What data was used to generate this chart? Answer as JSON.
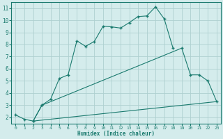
{
  "line1_x": [
    0,
    1,
    2,
    3,
    4,
    5,
    6,
    7,
    8,
    9,
    10,
    11,
    12,
    13,
    14,
    15,
    16,
    17,
    18,
    19,
    20,
    21,
    22
  ],
  "line1_y": [
    2.2,
    1.85,
    1.7,
    3.0,
    3.5,
    5.2,
    5.5,
    8.3,
    7.85,
    8.25,
    9.5,
    9.45,
    9.35,
    9.8,
    10.3,
    10.35,
    11.1,
    10.1,
    7.7,
    null,
    null,
    null,
    null
  ],
  "line2_x": [
    2,
    23
  ],
  "line2_y": [
    1.7,
    3.3
  ],
  "line3_x": [
    2,
    3,
    19,
    20,
    21,
    22,
    23
  ],
  "line3_y": [
    1.7,
    3.0,
    7.7,
    5.5,
    5.5,
    5.0,
    3.3
  ],
  "color": "#1a7a6e",
  "bg_color": "#d4ecec",
  "grid_color": "#aed0d0",
  "xlabel": "Humidex (Indice chaleur)",
  "xlim": [
    -0.5,
    23.5
  ],
  "ylim": [
    1.5,
    11.5
  ],
  "yticks": [
    2,
    3,
    4,
    5,
    6,
    7,
    8,
    9,
    10,
    11
  ],
  "xticks": [
    0,
    1,
    2,
    3,
    4,
    5,
    6,
    7,
    8,
    9,
    10,
    11,
    12,
    13,
    14,
    15,
    16,
    17,
    18,
    19,
    20,
    21,
    22,
    23
  ]
}
